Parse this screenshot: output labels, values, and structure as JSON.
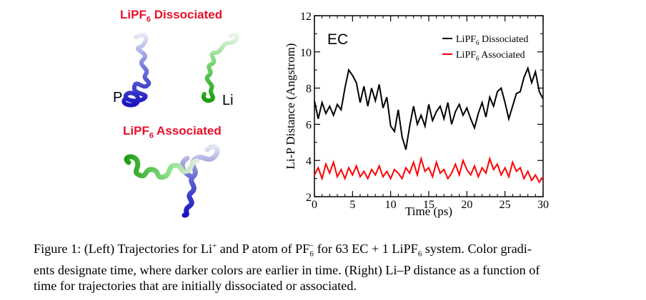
{
  "left_panel": {
    "top_label": {
      "prefix": "LiPF",
      "sub": "6",
      "suffix": " Dissociated"
    },
    "bottom_label": {
      "prefix": "LiPF",
      "sub": "6",
      "suffix": " Associated"
    },
    "atom_p": "P",
    "atom_li": "Li",
    "colors": {
      "p_trajectory": "#1a12c0",
      "li_trajectory": "#26b11a"
    }
  },
  "chart_data": {
    "type": "line",
    "annotation": "EC",
    "xlabel": "Time (ps)",
    "ylabel": "Li-P Distance (Angstrom)",
    "xlim": [
      0,
      30
    ],
    "ylim": [
      2,
      12
    ],
    "xticks": [
      "0",
      "5",
      "10",
      "15",
      "20",
      "25",
      "30"
    ],
    "yticks": [
      "2",
      "4",
      "6",
      "8",
      "10",
      "12"
    ],
    "grid": false,
    "legend_position": "top-right",
    "series": [
      {
        "name": "LiPF6 Dissociated",
        "legend": {
          "prefix": "LiPF",
          "sub": "6",
          "suffix": " Dissociated"
        },
        "color": "#000000",
        "x": [
          0,
          0.5,
          1,
          1.5,
          2,
          2.5,
          3,
          3.5,
          4,
          4.5,
          5,
          5.5,
          6,
          6.5,
          7,
          7.5,
          8,
          8.5,
          9,
          9.5,
          10,
          10.5,
          11,
          11.5,
          12,
          12.5,
          13,
          13.5,
          14,
          14.5,
          15,
          15.5,
          16,
          16.5,
          17,
          17.5,
          18,
          18.5,
          19,
          19.5,
          20,
          20.5,
          21,
          21.5,
          22,
          22.5,
          23,
          23.5,
          24,
          24.5,
          25,
          25.5,
          26,
          26.5,
          27,
          27.5,
          28,
          28.5,
          29,
          29.5,
          30
        ],
        "y": [
          7.3,
          6.3,
          7.2,
          6.6,
          7.0,
          6.5,
          7.1,
          6.8,
          8.0,
          9.0,
          8.7,
          8.3,
          7.2,
          8.1,
          7.0,
          8.0,
          7.3,
          8.2,
          6.9,
          7.5,
          5.9,
          5.6,
          6.8,
          5.3,
          4.6,
          5.9,
          7.0,
          6.0,
          6.5,
          5.9,
          7.1,
          6.2,
          6.7,
          7.0,
          6.3,
          7.2,
          6.0,
          6.7,
          7.1,
          6.5,
          6.9,
          6.3,
          5.8,
          6.6,
          7.2,
          6.4,
          7.5,
          7.0,
          7.8,
          8.0,
          7.2,
          6.3,
          7.0,
          7.7,
          7.8,
          8.6,
          9.1,
          8.3,
          8.9,
          7.8,
          7.4
        ]
      },
      {
        "name": "LiPF6 Associated",
        "legend": {
          "prefix": "LiPF",
          "sub": "6",
          "suffix": " Associated"
        },
        "color": "#ff0000",
        "x": [
          0,
          0.5,
          1,
          1.5,
          2,
          2.5,
          3,
          3.5,
          4,
          4.5,
          5,
          5.5,
          6,
          6.5,
          7,
          7.5,
          8,
          8.5,
          9,
          9.5,
          10,
          10.5,
          11,
          11.5,
          12,
          12.5,
          13,
          13.5,
          14,
          14.5,
          15,
          15.5,
          16,
          16.5,
          17,
          17.5,
          18,
          18.5,
          19,
          19.5,
          20,
          20.5,
          21,
          21.5,
          22,
          22.5,
          23,
          23.5,
          24,
          24.5,
          25,
          25.5,
          26,
          26.5,
          27,
          27.5,
          28,
          28.5,
          29,
          29.5,
          30
        ],
        "y": [
          3.2,
          3.6,
          3.0,
          3.8,
          3.3,
          3.9,
          3.1,
          3.5,
          3.0,
          3.6,
          3.2,
          3.7,
          3.1,
          3.4,
          3.0,
          3.5,
          3.2,
          3.7,
          3.1,
          3.4,
          3.0,
          3.5,
          3.3,
          3.0,
          3.6,
          3.3,
          3.9,
          3.2,
          4.1,
          3.4,
          3.6,
          3.1,
          3.9,
          3.3,
          3.5,
          3.0,
          3.3,
          3.8,
          3.2,
          4.0,
          3.5,
          3.2,
          3.7,
          3.1,
          3.6,
          3.3,
          4.1,
          3.5,
          3.8,
          3.2,
          3.6,
          3.1,
          3.9,
          3.4,
          3.6,
          3.0,
          3.4,
          2.9,
          3.2,
          2.8,
          3.1
        ]
      }
    ]
  },
  "caption": {
    "lead": "Figure 1: (Left) Trajectories for Li",
    "li_sup": "+",
    "mid1": " and P atom of PF",
    "pf_sub": "6",
    "pf_sup": "−",
    "mid2": " for 63 EC + 1 LiPF",
    "lipf_sub": "6",
    "rest1": " system. Color gradi-",
    "line2": "ents designate time, where darker colors are earlier in time. (Right) Li–P distance as a function of",
    "line3": "time for trajectories that are initially dissociated or associated."
  }
}
